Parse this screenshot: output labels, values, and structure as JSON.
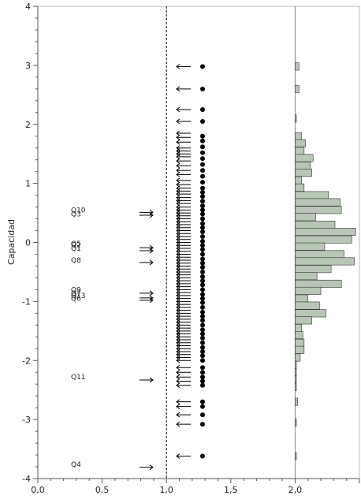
{
  "chart_data": {
    "type": "scatter",
    "title": "",
    "ylabel": "Capacidad",
    "xlabel": "",
    "xlim": [
      0,
      2.5
    ],
    "ylim": [
      -4,
      4
    ],
    "x_ticks": [
      {
        "value": 0,
        "label": "0,0"
      },
      {
        "value": 0.5,
        "label": "0,5"
      },
      {
        "value": 1.0,
        "label": "1,0"
      },
      {
        "value": 1.5,
        "label": "1,5"
      },
      {
        "value": 2.0,
        "label": "2,0"
      }
    ],
    "y_ticks": [
      {
        "value": 4,
        "label": "4"
      },
      {
        "value": 3,
        "label": "3"
      },
      {
        "value": 2,
        "label": "2"
      },
      {
        "value": 1,
        "label": "1"
      },
      {
        "value": 0,
        "label": "0"
      },
      {
        "value": -1,
        "label": "-1"
      },
      {
        "value": -2,
        "label": "-2"
      },
      {
        "value": -3,
        "label": "-3"
      },
      {
        "value": -4,
        "label": "-4"
      }
    ],
    "reference_lines": {
      "dashed_x": 1.0,
      "histogram_base_x": 2.0
    },
    "item_labels": [
      {
        "label": "Q10",
        "y": 0.55
      },
      {
        "label": "Q3",
        "y": 0.48
      },
      {
        "label": "Q5",
        "y": -0.02
      },
      {
        "label": "Q2",
        "y": -0.04
      },
      {
        "label": "Q1",
        "y": -0.1
      },
      {
        "label": "Q8",
        "y": -0.3
      },
      {
        "label": "Q9",
        "y": -0.8
      },
      {
        "label": "Q7",
        "y": -0.86
      },
      {
        "label": "Q13",
        "y": -0.9
      },
      {
        "label": "Q6",
        "y": -0.95
      },
      {
        "label": "Q11",
        "y": -2.28
      },
      {
        "label": "Q4",
        "y": -3.76
      }
    ],
    "item_arrows_y": [
      0.51,
      0.46,
      -0.09,
      -0.14,
      -0.34,
      -0.86,
      -0.94,
      -0.98,
      -2.33,
      -3.81
    ],
    "person_arrows_y": [
      2.98,
      2.6,
      2.25,
      2.05,
      1.85,
      1.78,
      1.7,
      1.6,
      1.55,
      1.5,
      1.45,
      1.38,
      1.3,
      1.22,
      1.15,
      1.05,
      0.98,
      0.92,
      0.87,
      0.82,
      0.76,
      0.71,
      0.66,
      0.6,
      0.55,
      0.5,
      0.45,
      0.4,
      0.35,
      0.3,
      0.25,
      0.2,
      0.15,
      0.1,
      0.05,
      0.0,
      -0.05,
      -0.1,
      -0.15,
      -0.2,
      -0.25,
      -0.3,
      -0.35,
      -0.4,
      -0.45,
      -0.5,
      -0.55,
      -0.6,
      -0.65,
      -0.7,
      -0.75,
      -0.8,
      -0.85,
      -0.9,
      -0.95,
      -1.0,
      -1.05,
      -1.1,
      -1.15,
      -1.2,
      -1.25,
      -1.3,
      -1.35,
      -1.4,
      -1.45,
      -1.5,
      -1.55,
      -1.6,
      -1.65,
      -1.7,
      -1.75,
      -1.8,
      -1.85,
      -1.9,
      -1.95,
      -2.0,
      -2.12,
      -2.2,
      -2.28,
      -2.35,
      -2.42,
      -2.7,
      -2.78,
      -2.92,
      -3.08,
      -3.62
    ],
    "person_points_y": [
      2.98,
      2.6,
      2.25,
      2.05,
      1.8,
      1.72,
      1.62,
      1.52,
      1.42,
      1.32,
      1.22,
      1.12,
      1.02,
      0.92,
      0.85,
      0.78,
      0.7,
      0.62,
      0.55,
      0.48,
      0.4,
      0.32,
      0.25,
      0.18,
      0.1,
      0.02,
      -0.05,
      -0.12,
      -0.2,
      -0.28,
      -0.35,
      -0.42,
      -0.5,
      -0.58,
      -0.65,
      -0.72,
      -0.8,
      -0.88,
      -0.95,
      -1.02,
      -1.1,
      -1.18,
      -1.25,
      -1.32,
      -1.4,
      -1.48,
      -1.55,
      -1.62,
      -1.7,
      -1.78,
      -1.85,
      -1.92,
      -2.0,
      -2.12,
      -2.2,
      -2.28,
      -2.35,
      -2.42,
      -2.7,
      -2.78,
      -2.92,
      -3.08,
      -3.62
    ],
    "histogram": {
      "bin_width": 0.125,
      "bins": [
        {
          "y": 2.98,
          "length": 0.03
        },
        {
          "y": 2.6,
          "length": 0.03
        },
        {
          "y": 2.1,
          "length": 0.01
        },
        {
          "y": 1.8,
          "length": 0.05
        },
        {
          "y": 1.68,
          "length": 0.08
        },
        {
          "y": 1.55,
          "length": 0.07
        },
        {
          "y": 1.43,
          "length": 0.14
        },
        {
          "y": 1.3,
          "length": 0.12
        },
        {
          "y": 1.18,
          "length": 0.13
        },
        {
          "y": 1.05,
          "length": 0.05
        },
        {
          "y": 0.93,
          "length": 0.07
        },
        {
          "y": 0.8,
          "length": 0.26
        },
        {
          "y": 0.68,
          "length": 0.35
        },
        {
          "y": 0.55,
          "length": 0.36
        },
        {
          "y": 0.43,
          "length": 0.16
        },
        {
          "y": 0.3,
          "length": 0.31
        },
        {
          "y": 0.18,
          "length": 0.47
        },
        {
          "y": 0.05,
          "length": 0.44
        },
        {
          "y": -0.07,
          "length": 0.23
        },
        {
          "y": -0.2,
          "length": 0.38
        },
        {
          "y": -0.32,
          "length": 0.46
        },
        {
          "y": -0.45,
          "length": 0.28
        },
        {
          "y": -0.57,
          "length": 0.17
        },
        {
          "y": -0.7,
          "length": 0.36
        },
        {
          "y": -0.82,
          "length": 0.2
        },
        {
          "y": -0.95,
          "length": 0.1
        },
        {
          "y": -1.07,
          "length": 0.19
        },
        {
          "y": -1.2,
          "length": 0.24
        },
        {
          "y": -1.32,
          "length": 0.13
        },
        {
          "y": -1.45,
          "length": 0.05
        },
        {
          "y": -1.57,
          "length": 0.06
        },
        {
          "y": -1.7,
          "length": 0.07
        },
        {
          "y": -1.82,
          "length": 0.07
        },
        {
          "y": -1.95,
          "length": 0.04
        },
        {
          "y": -2.07,
          "length": 0.01
        },
        {
          "y": -2.2,
          "length": 0.01
        },
        {
          "y": -2.32,
          "length": 0.01
        },
        {
          "y": -2.45,
          "length": 0.01
        },
        {
          "y": -2.7,
          "length": 0.02
        },
        {
          "y": -3.05,
          "length": 0.01
        },
        {
          "y": -3.62,
          "length": 0.01
        }
      ]
    },
    "colors": {
      "axis": "#555555",
      "histogram_fill": "#b7c6b5",
      "histogram_stroke": "#333333",
      "marks": "#000000",
      "frame": "#bbbbbb"
    }
  }
}
